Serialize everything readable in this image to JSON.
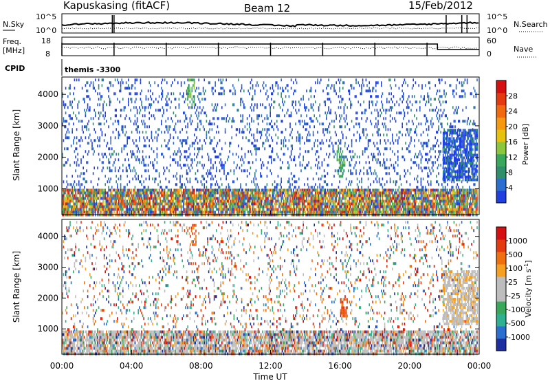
{
  "header": {
    "station": "Kapuskasing (fitACF)",
    "beam": "Beam 12",
    "date": "15/Feb/2012"
  },
  "noise_panel": {
    "left_label": "N.Sky",
    "left_ticks": [
      "10^5",
      "10^0"
    ],
    "right_ticks": [
      "10^5",
      "10^0"
    ],
    "right_label": "N.Search"
  },
  "freq_panel": {
    "left_label_1": "Freq.",
    "left_label_2": "[MHz]",
    "left_ticks": [
      "18",
      "8"
    ],
    "right_ticks": [
      "60",
      "0"
    ],
    "right_label": "Nave"
  },
  "cpid_panel": {
    "label": "CPID",
    "value": "themis -3300"
  },
  "x_axis": {
    "label": "Time UT",
    "ticks": [
      "00:00",
      "04:00",
      "08:00",
      "12:00",
      "16:00",
      "20:00",
      "00:00"
    ]
  },
  "chart_data": [
    {
      "type": "heatmap",
      "name": "power",
      "xlabel": "Time UT",
      "ylabel": "Slant Range [km]",
      "xlim_hours": [
        0,
        24
      ],
      "ylim_km": [
        180,
        4550
      ],
      "y_ticks": [
        1000,
        2000,
        3000,
        4000
      ],
      "colorbar": {
        "label": "Power [dB]",
        "ticks": [
          "4",
          "8",
          "12",
          "16",
          "20",
          "24",
          "28"
        ],
        "colors": [
          "#1f3fe0",
          "#2a6fd0",
          "#2f8f6a",
          "#3aa85a",
          "#8cc63e",
          "#e6c20e",
          "#f59a10",
          "#f26a10",
          "#e43a10",
          "#d60f10"
        ]
      },
      "regions": [
        {
          "t0": 0.0,
          "t1": 23.9,
          "r0": 180,
          "r1": 1000,
          "density": 0.9,
          "tone": "mixed"
        },
        {
          "t0": 0.0,
          "t1": 23.9,
          "r0": 1000,
          "r1": 4500,
          "density": 0.16,
          "tone": "blue"
        },
        {
          "t0": 7.2,
          "t1": 7.6,
          "r0": 3700,
          "r1": 4500,
          "density": 0.5,
          "tone": "green"
        },
        {
          "t0": 15.8,
          "t1": 16.3,
          "r0": 1400,
          "r1": 2400,
          "density": 0.5,
          "tone": "green"
        },
        {
          "t0": 21.9,
          "t1": 23.9,
          "r0": 1300,
          "r1": 2900,
          "density": 0.75,
          "tone": "blue"
        }
      ]
    },
    {
      "type": "heatmap",
      "name": "velocity",
      "xlabel": "Time UT",
      "ylabel": "Slant Range [km]",
      "xlim_hours": [
        0,
        24
      ],
      "ylim_km": [
        180,
        4550
      ],
      "y_ticks": [
        1000,
        2000,
        3000,
        4000
      ],
      "colorbar": {
        "label": "Velocity [m s^-1]",
        "ticks": [
          "1000",
          "500",
          "100",
          "25",
          "-25",
          "-100",
          "-500",
          "-1000"
        ],
        "colors": [
          "#1d2ea0",
          "#2a6fd0",
          "#2fb090",
          "#3aa85a",
          "#bdbdbd",
          "#bdbdbd",
          "#f5a020",
          "#f07010",
          "#e43a10",
          "#d60f10"
        ]
      },
      "regions": [
        {
          "t0": 0.0,
          "t1": 23.9,
          "r0": 180,
          "r1": 950,
          "density": 0.85,
          "tone": "grey-mixed"
        },
        {
          "t0": 0.0,
          "t1": 23.9,
          "r0": 950,
          "r1": 4500,
          "density": 0.13,
          "tone": "mixed"
        },
        {
          "t0": 7.3,
          "t1": 7.7,
          "r0": 3700,
          "r1": 4400,
          "density": 0.5,
          "tone": "red"
        },
        {
          "t0": 16.0,
          "t1": 16.4,
          "r0": 1400,
          "r1": 2000,
          "density": 0.55,
          "tone": "red"
        },
        {
          "t0": 21.9,
          "t1": 23.9,
          "r0": 1200,
          "r1": 2900,
          "density": 0.7,
          "tone": "grey"
        }
      ]
    }
  ]
}
